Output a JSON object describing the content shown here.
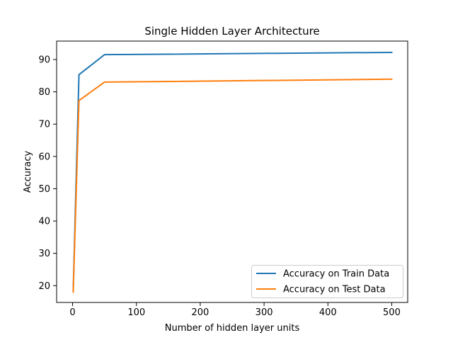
{
  "chart_data": {
    "type": "line",
    "title": "Single Hidden Layer Architecture",
    "xlabel": "Number of hidden layer units",
    "ylabel": "Accuracy",
    "xlim": [
      -25,
      525
    ],
    "ylim": [
      14.8,
      95.7
    ],
    "xticks": [
      0,
      100,
      200,
      300,
      400,
      500
    ],
    "yticks": [
      20,
      30,
      40,
      50,
      60,
      70,
      80,
      90
    ],
    "grid": false,
    "legend_position": "lower-right",
    "x": [
      1,
      10,
      50,
      500
    ],
    "series": [
      {
        "name": "Accuracy on Train Data",
        "color": "#1f77b4",
        "values": [
          18.6,
          85.3,
          91.5,
          92.2
        ]
      },
      {
        "name": "Accuracy on Test Data",
        "color": "#ff7f0e",
        "values": [
          18.0,
          77.3,
          83.0,
          83.9
        ]
      }
    ]
  }
}
